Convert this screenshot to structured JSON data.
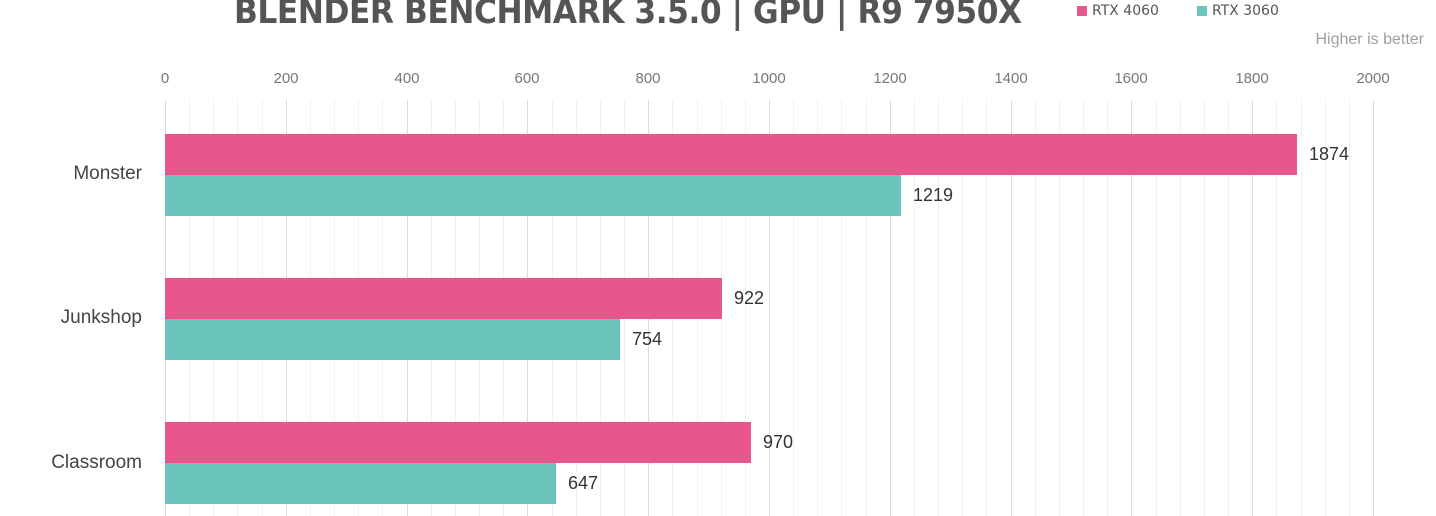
{
  "title": "BLENDER BENCHMARK 3.5.0 | GPU | R9 7950X",
  "note": "Higher is better",
  "legend": [
    {
      "label": "RTX 4060",
      "color": "#e8578b"
    },
    {
      "label": "RTX 3060",
      "color": "#6cc5bd"
    }
  ],
  "axis": {
    "ticks": [
      "0",
      "200",
      "400",
      "600",
      "800",
      "1000",
      "1200",
      "1400",
      "1600",
      "1800",
      "2000"
    ],
    "min": 0,
    "max": 2000
  },
  "chart_data": {
    "type": "bar",
    "orientation": "horizontal",
    "title": "BLENDER BENCHMARK 3.5.0 | GPU | R9 7950X",
    "subtitle": "Higher is better",
    "categories": [
      "Monster",
      "Junkshop",
      "Classroom"
    ],
    "series": [
      {
        "name": "RTX 4060",
        "color": "#e8578b",
        "values": [
          1874,
          922,
          970
        ]
      },
      {
        "name": "RTX 3060",
        "color": "#6cc5bd",
        "values": [
          1219,
          754,
          647
        ]
      }
    ],
    "xlabel": "",
    "ylabel": "",
    "xlim": [
      0,
      2000
    ],
    "xticks": [
      0,
      200,
      400,
      600,
      800,
      1000,
      1200,
      1400,
      1600,
      1800,
      2000
    ],
    "grid": true,
    "legend_position": "top-right"
  },
  "labels": {
    "cat0": "Monster",
    "cat1": "Junkshop",
    "cat2": "Classroom",
    "v00": "1874",
    "v01": "1219",
    "v10": "922",
    "v11": "754",
    "v20": "970",
    "v21": "647"
  }
}
